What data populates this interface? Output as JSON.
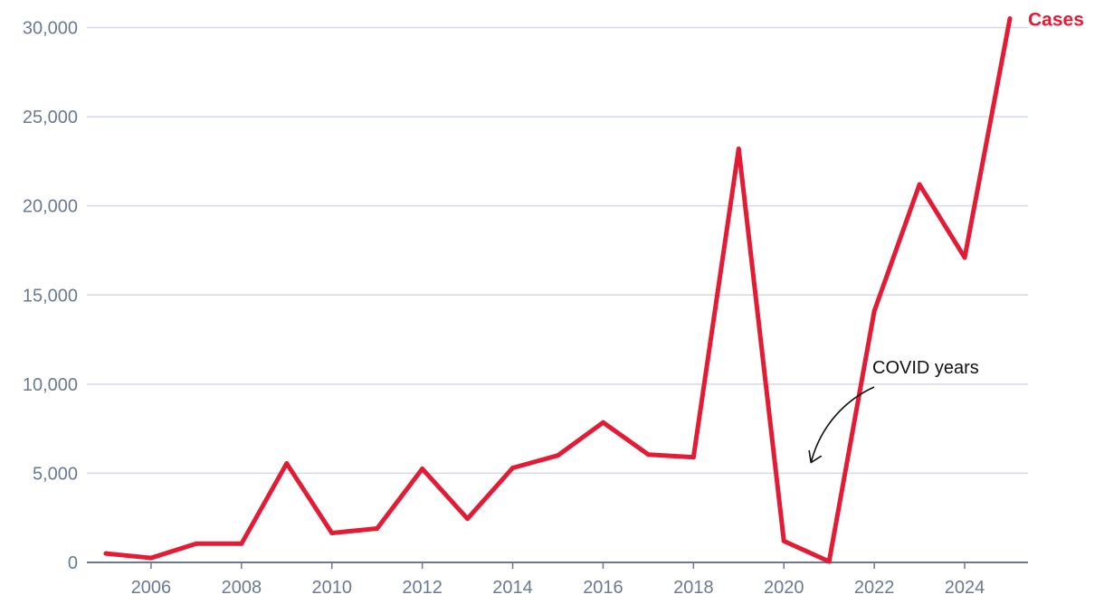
{
  "chart_data": {
    "type": "line",
    "title": "",
    "xlabel": "",
    "ylabel": "",
    "x": [
      2005,
      2006,
      2007,
      2008,
      2009,
      2010,
      2011,
      2012,
      2013,
      2014,
      2015,
      2016,
      2017,
      2018,
      2019,
      2020,
      2021,
      2022,
      2023,
      2024,
      2025
    ],
    "series": [
      {
        "name": "Cases",
        "color": "#e31b35",
        "values": [
          500,
          250,
          1050,
          1050,
          5550,
          1650,
          1900,
          5250,
          2450,
          5300,
          6000,
          7850,
          6050,
          5900,
          23200,
          1200,
          50,
          14100,
          21200,
          17100,
          30500
        ]
      }
    ],
    "xlim": [
      2005,
      2025
    ],
    "ylim": [
      0,
      30000
    ],
    "x_ticks": [
      "2006",
      "2008",
      "2010",
      "2012",
      "2014",
      "2016",
      "2018",
      "2020",
      "2022",
      "2024"
    ],
    "y_ticks": [
      "0",
      "5,000",
      "10,000",
      "15,000",
      "20,000",
      "25,000",
      "30,000"
    ],
    "grid": true,
    "annotations": [
      {
        "text": "COVID years",
        "target_year": 2020.6,
        "target_value": 5600
      }
    ],
    "colors": {
      "line": "#e31b35",
      "grid": "#d5d9e3",
      "axis": "#6b7a90",
      "ticks": "#6b7a90",
      "annotation": "#111111"
    }
  }
}
